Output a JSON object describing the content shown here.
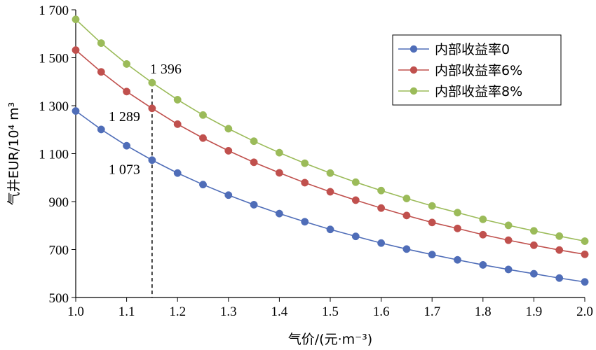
{
  "chart_data": {
    "type": "line",
    "title": "",
    "xlabel": "气价/(元·m⁻³)",
    "ylabel": "气井EUR/10⁴ m³",
    "xlim": [
      1.0,
      2.0
    ],
    "ylim": [
      500,
      1700
    ],
    "x_ticks": [
      "1.0",
      "1.1",
      "1.2",
      "1.3",
      "1.4",
      "1.5",
      "1.6",
      "1.7",
      "1.8",
      "1.9",
      "2.0"
    ],
    "y_ticks": [
      "500",
      "700",
      "900",
      "1 100",
      "1 300",
      "1 500",
      "1 700"
    ],
    "x": [
      1.0,
      1.05,
      1.1,
      1.15,
      1.2,
      1.25,
      1.3,
      1.35,
      1.4,
      1.45,
      1.5,
      1.55,
      1.6,
      1.65,
      1.7,
      1.75,
      1.8,
      1.85,
      1.9,
      1.95,
      2.0
    ],
    "series": [
      {
        "name": "内部收益率0",
        "color": "#4f6db8",
        "values": [
          1278,
          1201,
          1133,
          1073,
          1019,
          971,
          927,
          887,
          850,
          816,
          784,
          755,
          727,
          702,
          679,
          657,
          636,
          617,
          599,
          581,
          565
        ]
      },
      {
        "name": "内部收益率6%",
        "color": "#c0504d",
        "values": [
          1532,
          1441,
          1359,
          1289,
          1223,
          1165,
          1112,
          1064,
          1020,
          979,
          941,
          906,
          873,
          842,
          813,
          788,
          762,
          739,
          718,
          698,
          680
        ]
      },
      {
        "name": "内部收益率8%",
        "color": "#9bbb59",
        "values": [
          1660,
          1561,
          1474,
          1396,
          1325,
          1261,
          1204,
          1152,
          1104,
          1060,
          1019,
          981,
          946,
          913,
          882,
          854,
          826,
          801,
          778,
          756,
          735
        ]
      }
    ],
    "legend_position": "top-right",
    "grid": false,
    "reference_line": {
      "x": 1.15,
      "style": "dashed"
    },
    "annotations": [
      {
        "text": "1 396",
        "x": 1.15,
        "y": 1396
      },
      {
        "text": "1 289",
        "x": 1.15,
        "y": 1289
      },
      {
        "text": "1 073",
        "x": 1.15,
        "y": 1073
      }
    ]
  }
}
